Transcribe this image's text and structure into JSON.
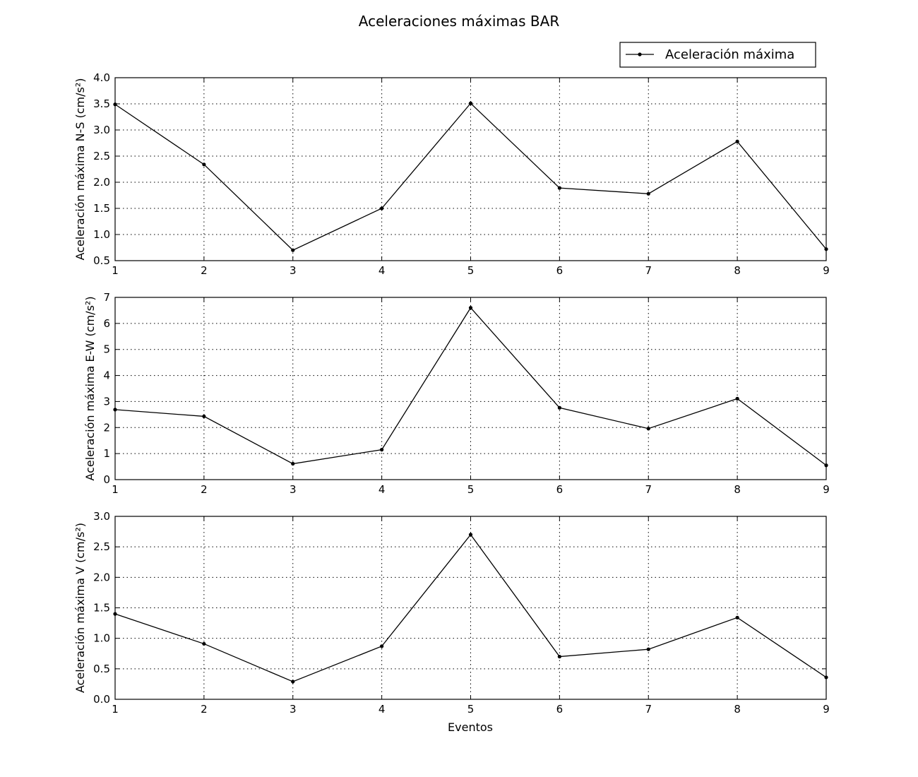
{
  "chart_data": {
    "type": "line",
    "title": "Aceleraciones máximas BAR",
    "legend": {
      "label": "Aceleración máxima",
      "position": "top-right"
    },
    "xlabel": "Eventos",
    "x": [
      1,
      2,
      3,
      4,
      5,
      6,
      7,
      8,
      9
    ],
    "color": "#000000",
    "grid": true,
    "subplots": [
      {
        "ylabel": "Aceleración máxima N-S (cm/s²)",
        "ylim": [
          0.5,
          4.0
        ],
        "yticks": [
          0.5,
          1.0,
          1.5,
          2.0,
          2.5,
          3.0,
          3.5,
          4.0
        ],
        "ytick_labels": [
          "0.5",
          "1.0",
          "1.5",
          "2.0",
          "2.5",
          "3.0",
          "3.5",
          "4.0"
        ],
        "values": [
          3.49,
          2.34,
          0.7,
          1.5,
          3.51,
          1.89,
          1.78,
          2.78,
          0.72
        ]
      },
      {
        "ylabel": "Aceleración máxima E-W (cm/s²)",
        "ylim": [
          0,
          7
        ],
        "yticks": [
          0,
          1,
          2,
          3,
          4,
          5,
          6,
          7
        ],
        "ytick_labels": [
          "0",
          "1",
          "2",
          "3",
          "4",
          "5",
          "6",
          "7"
        ],
        "values": [
          2.69,
          2.43,
          0.61,
          1.15,
          6.6,
          2.76,
          1.96,
          3.11,
          0.55
        ]
      },
      {
        "ylabel": "Aceleración máxima V (cm/s²)",
        "ylim": [
          0.0,
          3.0
        ],
        "yticks": [
          0.0,
          0.5,
          1.0,
          1.5,
          2.0,
          2.5,
          3.0
        ],
        "ytick_labels": [
          "0.0",
          "0.5",
          "1.0",
          "1.5",
          "2.0",
          "2.5",
          "3.0"
        ],
        "values": [
          1.4,
          0.91,
          0.29,
          0.87,
          2.7,
          0.7,
          0.82,
          1.34,
          0.36
        ]
      }
    ]
  }
}
